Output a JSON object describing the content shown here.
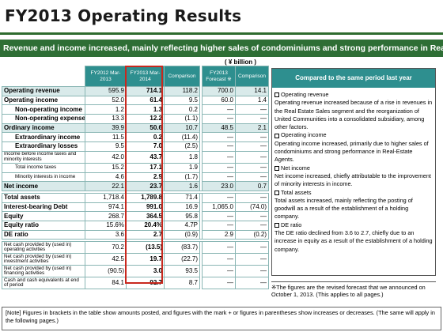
{
  "title": "FY2013 Operating Results",
  "banner": "Revenue and income increased, mainly reflecting higher sales of condominiums and strong performance in Real-Estate Agents.",
  "unit": "( ¥ billion )",
  "columns": {
    "fy2012": "FY2012 Mar-2013",
    "fy2013": "FY2013 Mar-2014",
    "comparison1": "Comparison",
    "forecast": "FY2013 Forecast ※",
    "comparison2": "Comparison"
  },
  "rows": [
    {
      "label": "Operating revenue",
      "fy2012": "595.9",
      "fy2013": "714.1",
      "cmp": "118.2",
      "fc": "700.0",
      "cmp2": "14.1"
    },
    {
      "label": "Operating income",
      "fy2012": "52.0",
      "fy2013": "61.4",
      "cmp": "9.5",
      "fc": "60.0",
      "cmp2": "1.4"
    },
    {
      "label": "Non-operating income",
      "fy2012": "1.2",
      "fy2013": "1.3",
      "cmp": "0.2",
      "fc": "—",
      "cmp2": "—"
    },
    {
      "label": "Non-operating expenses",
      "fy2012": "13.3",
      "fy2013": "12.2",
      "cmp": "(1.1)",
      "fc": "—",
      "cmp2": "—"
    },
    {
      "label": "Ordinary income",
      "fy2012": "39.9",
      "fy2013": "50.6",
      "cmp": "10.7",
      "fc": "48.5",
      "cmp2": "2.1"
    },
    {
      "label": "Extraordinary income",
      "fy2012": "11.5",
      "fy2013": "0.2",
      "cmp": "(11.4)",
      "fc": "—",
      "cmp2": "—"
    },
    {
      "label": "Extraordinary losses",
      "fy2012": "9.5",
      "fy2013": "7.0",
      "cmp": "(2.5)",
      "fc": "—",
      "cmp2": "—"
    },
    {
      "label": "Income before income taxes and minority interests",
      "fy2012": "42.0",
      "fy2013": "43.7",
      "cmp": "1.8",
      "fc": "—",
      "cmp2": "—"
    },
    {
      "label": "Total income taxes",
      "fy2012": "15.2",
      "fy2013": "17.1",
      "cmp": "1.9",
      "fc": "—",
      "cmp2": "—"
    },
    {
      "label": "Minority interests in income",
      "fy2012": "4.6",
      "fy2013": "2.9",
      "cmp": "(1.7)",
      "fc": "—",
      "cmp2": "—"
    },
    {
      "label": "Net income",
      "fy2012": "22.1",
      "fy2013": "23.7",
      "cmp": "1.6",
      "fc": "23.0",
      "cmp2": "0.7"
    },
    {
      "label": "Total assets",
      "fy2012": "1,718.4",
      "fy2013": "1,789.8",
      "cmp": "71.4",
      "fc": "—",
      "cmp2": "—"
    },
    {
      "label": "Interest-bearing Debt",
      "fy2012": "974.1",
      "fy2013": "991.0",
      "cmp": "16.9",
      "fc": "1,065.0",
      "cmp2": "(74.0)"
    },
    {
      "label": "Equity",
      "fy2012": "268.7",
      "fy2013": "364.5",
      "cmp": "95.8",
      "fc": "—",
      "cmp2": "—"
    },
    {
      "label": "Equity ratio",
      "fy2012": "15.6%",
      "fy2013": "20.4%",
      "cmp": "4.7P",
      "fc": "—",
      "cmp2": "—"
    },
    {
      "label": "DE ratio",
      "fy2012": "3.6",
      "fy2013": "2.7",
      "cmp": "(0.9)",
      "fc": "2.9",
      "cmp2": "(0.2)"
    },
    {
      "label": "Net cash provided by (used in) operating activities",
      "fy2012": "70.2",
      "fy2013": "(13.5)",
      "cmp": "(83.7)",
      "fc": "—",
      "cmp2": "—"
    },
    {
      "label": "Net cash provided by (used in) investment activities",
      "fy2012": "42.5",
      "fy2013": "19.7",
      "cmp": "(22.7)",
      "fc": "—",
      "cmp2": "—"
    },
    {
      "label": "Net cash provided by (used in) financing activities",
      "fy2012": "(90.5)",
      "fy2013": "3.0",
      "cmp": "93.5",
      "fc": "—",
      "cmp2": "—"
    },
    {
      "label": "Cash and cash equivalents at end of period",
      "fy2012": "84.1",
      "fy2013": "92.7",
      "cmp": "8.7",
      "fc": "—",
      "cmp2": "—"
    }
  ],
  "comparison_panel": {
    "header": "Compared to the same period last year",
    "sections": [
      {
        "heading": "Operating revenue",
        "text": "Operating revenue increased because of a rise in revenues in the Real Estate Sales segment and the reorganization of United Communities into a consolidated subsidiary, among other factors."
      },
      {
        "heading": "Operating income",
        "text": "Operating income increased, primarily due to higher sales of condominiums and strong performance in Real-Estate Agents."
      },
      {
        "heading": "Net income",
        "text": "Net income increased, chiefly attributable to the improvement of minority interests in income."
      },
      {
        "heading": "Total assets",
        "text": "Total assets increased, mainly reflecting the posting of goodwill as a result of the establishment of a holding company."
      },
      {
        "heading": "DE ratio",
        "text": "The DE ratio declined from 3.6 to 2.7, chiefly due to an increase in equity as a result of the establishment of a holding company."
      }
    ]
  },
  "forecast_note": "※The figures are the revised forecast that we announced on October 1, 2013. (This applies to all pages.)",
  "footer_note": "[Note] Figures in brackets in the table show amounts posted, and figures with the mark + or figures in parentheses show increases or decreases. (The same will apply in the following pages.)"
}
